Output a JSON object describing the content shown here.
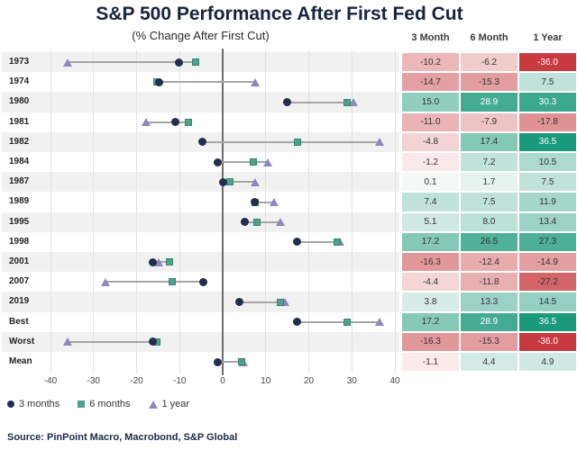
{
  "chart_data": {
    "type": "dumbbell",
    "title": "S&P 500 Performance After First Fed Cut",
    "subtitle": "(% Change After First Cut)",
    "source": "Source: PinPoint Macro, Macrobond, S&P Global",
    "xlabel": "",
    "ylabel": "",
    "xlim": [
      -40,
      40
    ],
    "xticks": [
      -40,
      -30,
      -20,
      -10,
      0,
      10,
      20,
      30,
      40
    ],
    "grid": "vertical-light",
    "legend_position": "bottom-left",
    "columns": [
      "3 Month",
      "6 Month",
      "1 Year"
    ],
    "series": [
      {
        "name": "3 months",
        "shape": "circle",
        "color": "#222e4e"
      },
      {
        "name": "6 months",
        "shape": "square",
        "color": "#4da28b"
      },
      {
        "name": "1 year",
        "shape": "triangle",
        "color": "#9186bf"
      }
    ],
    "rows": [
      {
        "label": "1973",
        "values": [
          -10.2,
          -6.2,
          -36.0
        ]
      },
      {
        "label": "1974",
        "values": [
          -14.7,
          -15.3,
          7.5
        ]
      },
      {
        "label": "1980",
        "values": [
          15.0,
          28.9,
          30.3
        ]
      },
      {
        "label": "1981",
        "values": [
          -11.0,
          -7.9,
          -17.8
        ]
      },
      {
        "label": "1982",
        "values": [
          -4.8,
          17.4,
          36.5
        ]
      },
      {
        "label": "1984",
        "values": [
          -1.2,
          7.2,
          10.5
        ]
      },
      {
        "label": "1987",
        "values": [
          0.1,
          1.7,
          7.5
        ]
      },
      {
        "label": "1989",
        "values": [
          7.4,
          7.5,
          11.9
        ]
      },
      {
        "label": "1995",
        "values": [
          5.1,
          8.0,
          13.4
        ]
      },
      {
        "label": "1998",
        "values": [
          17.2,
          26.5,
          27.3
        ]
      },
      {
        "label": "2001",
        "values": [
          -16.3,
          -12.4,
          -14.9
        ]
      },
      {
        "label": "2007",
        "values": [
          -4.4,
          -11.8,
          -27.2
        ]
      },
      {
        "label": "2019",
        "values": [
          3.8,
          13.3,
          14.5
        ]
      },
      {
        "label": "Best",
        "values": [
          17.2,
          28.9,
          36.5
        ]
      },
      {
        "label": "Worst",
        "values": [
          -16.3,
          -15.3,
          -36.0
        ]
      },
      {
        "label": "Mean",
        "values": [
          -1.1,
          4.4,
          4.9
        ]
      }
    ],
    "heatmap_colors": {
      "positive_deep": "#1a997b",
      "negative_deep": "#c6393e",
      "near_zero": "#f6f8f7"
    }
  }
}
